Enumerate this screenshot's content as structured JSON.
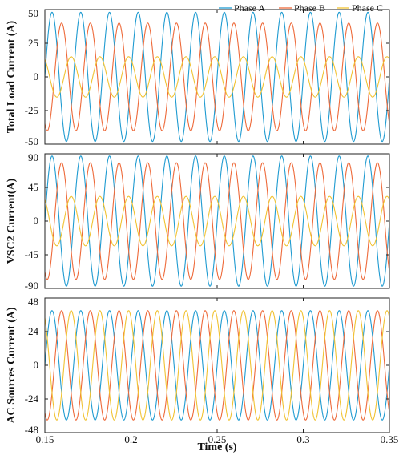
{
  "colors": {
    "phase_a": "#1f9bd1",
    "phase_b": "#ee6a3a",
    "phase_c": "#f1c232"
  },
  "legend": {
    "placement": "top-right",
    "entries": [
      "Phase A",
      "Phase B",
      "Phase C"
    ]
  },
  "chart_data": [
    {
      "type": "line",
      "ylabel": "Total Load Current (A)",
      "xlim": [
        0.15,
        0.35
      ],
      "ylim": [
        -50,
        50
      ],
      "yticks": [
        "50",
        "25",
        "0",
        "-25",
        "-50"
      ],
      "ytick_values": [
        50,
        25,
        0,
        -25,
        -50
      ],
      "frequency_hz": 60,
      "series": [
        {
          "name": "Phase A",
          "amplitude": 48,
          "phase_deg": 0
        },
        {
          "name": "Phase B",
          "amplitude": 40,
          "phase_deg": -120
        },
        {
          "name": "Phase C",
          "amplitude": 15,
          "phase_deg": 120
        }
      ]
    },
    {
      "type": "line",
      "ylabel": "VSC2 Current(A)",
      "xlim": [
        0.15,
        0.35
      ],
      "ylim": [
        -90,
        90
      ],
      "yticks": [
        "90",
        "45",
        "0",
        "-45",
        "-90"
      ],
      "ytick_values": [
        90,
        45,
        0,
        -45,
        -90
      ],
      "frequency_hz": 60,
      "series": [
        {
          "name": "Phase A",
          "amplitude": 87,
          "phase_deg": 0
        },
        {
          "name": "Phase B",
          "amplitude": 78,
          "phase_deg": -120
        },
        {
          "name": "Phase C",
          "amplitude": 33,
          "phase_deg": 120
        }
      ]
    },
    {
      "type": "line",
      "xlabel": "Time (s)",
      "ylabel": "AC Sources Current (A)",
      "xlim": [
        0.15,
        0.35
      ],
      "ylim": [
        -48,
        48
      ],
      "yticks": [
        "48",
        "24",
        "0",
        "-24",
        "-48"
      ],
      "ytick_values": [
        48,
        24,
        0,
        -24,
        -48
      ],
      "xticks": [
        "0.15",
        "0.2",
        "0.25",
        "0.3",
        "0.35"
      ],
      "xtick_values": [
        0.15,
        0.2,
        0.25,
        0.3,
        0.35
      ],
      "frequency_hz": 60,
      "series": [
        {
          "name": "Phase A",
          "amplitude": 39,
          "phase_deg": 0
        },
        {
          "name": "Phase B",
          "amplitude": 39,
          "phase_deg": -120
        },
        {
          "name": "Phase C",
          "amplitude": 39,
          "phase_deg": 120
        }
      ]
    }
  ]
}
